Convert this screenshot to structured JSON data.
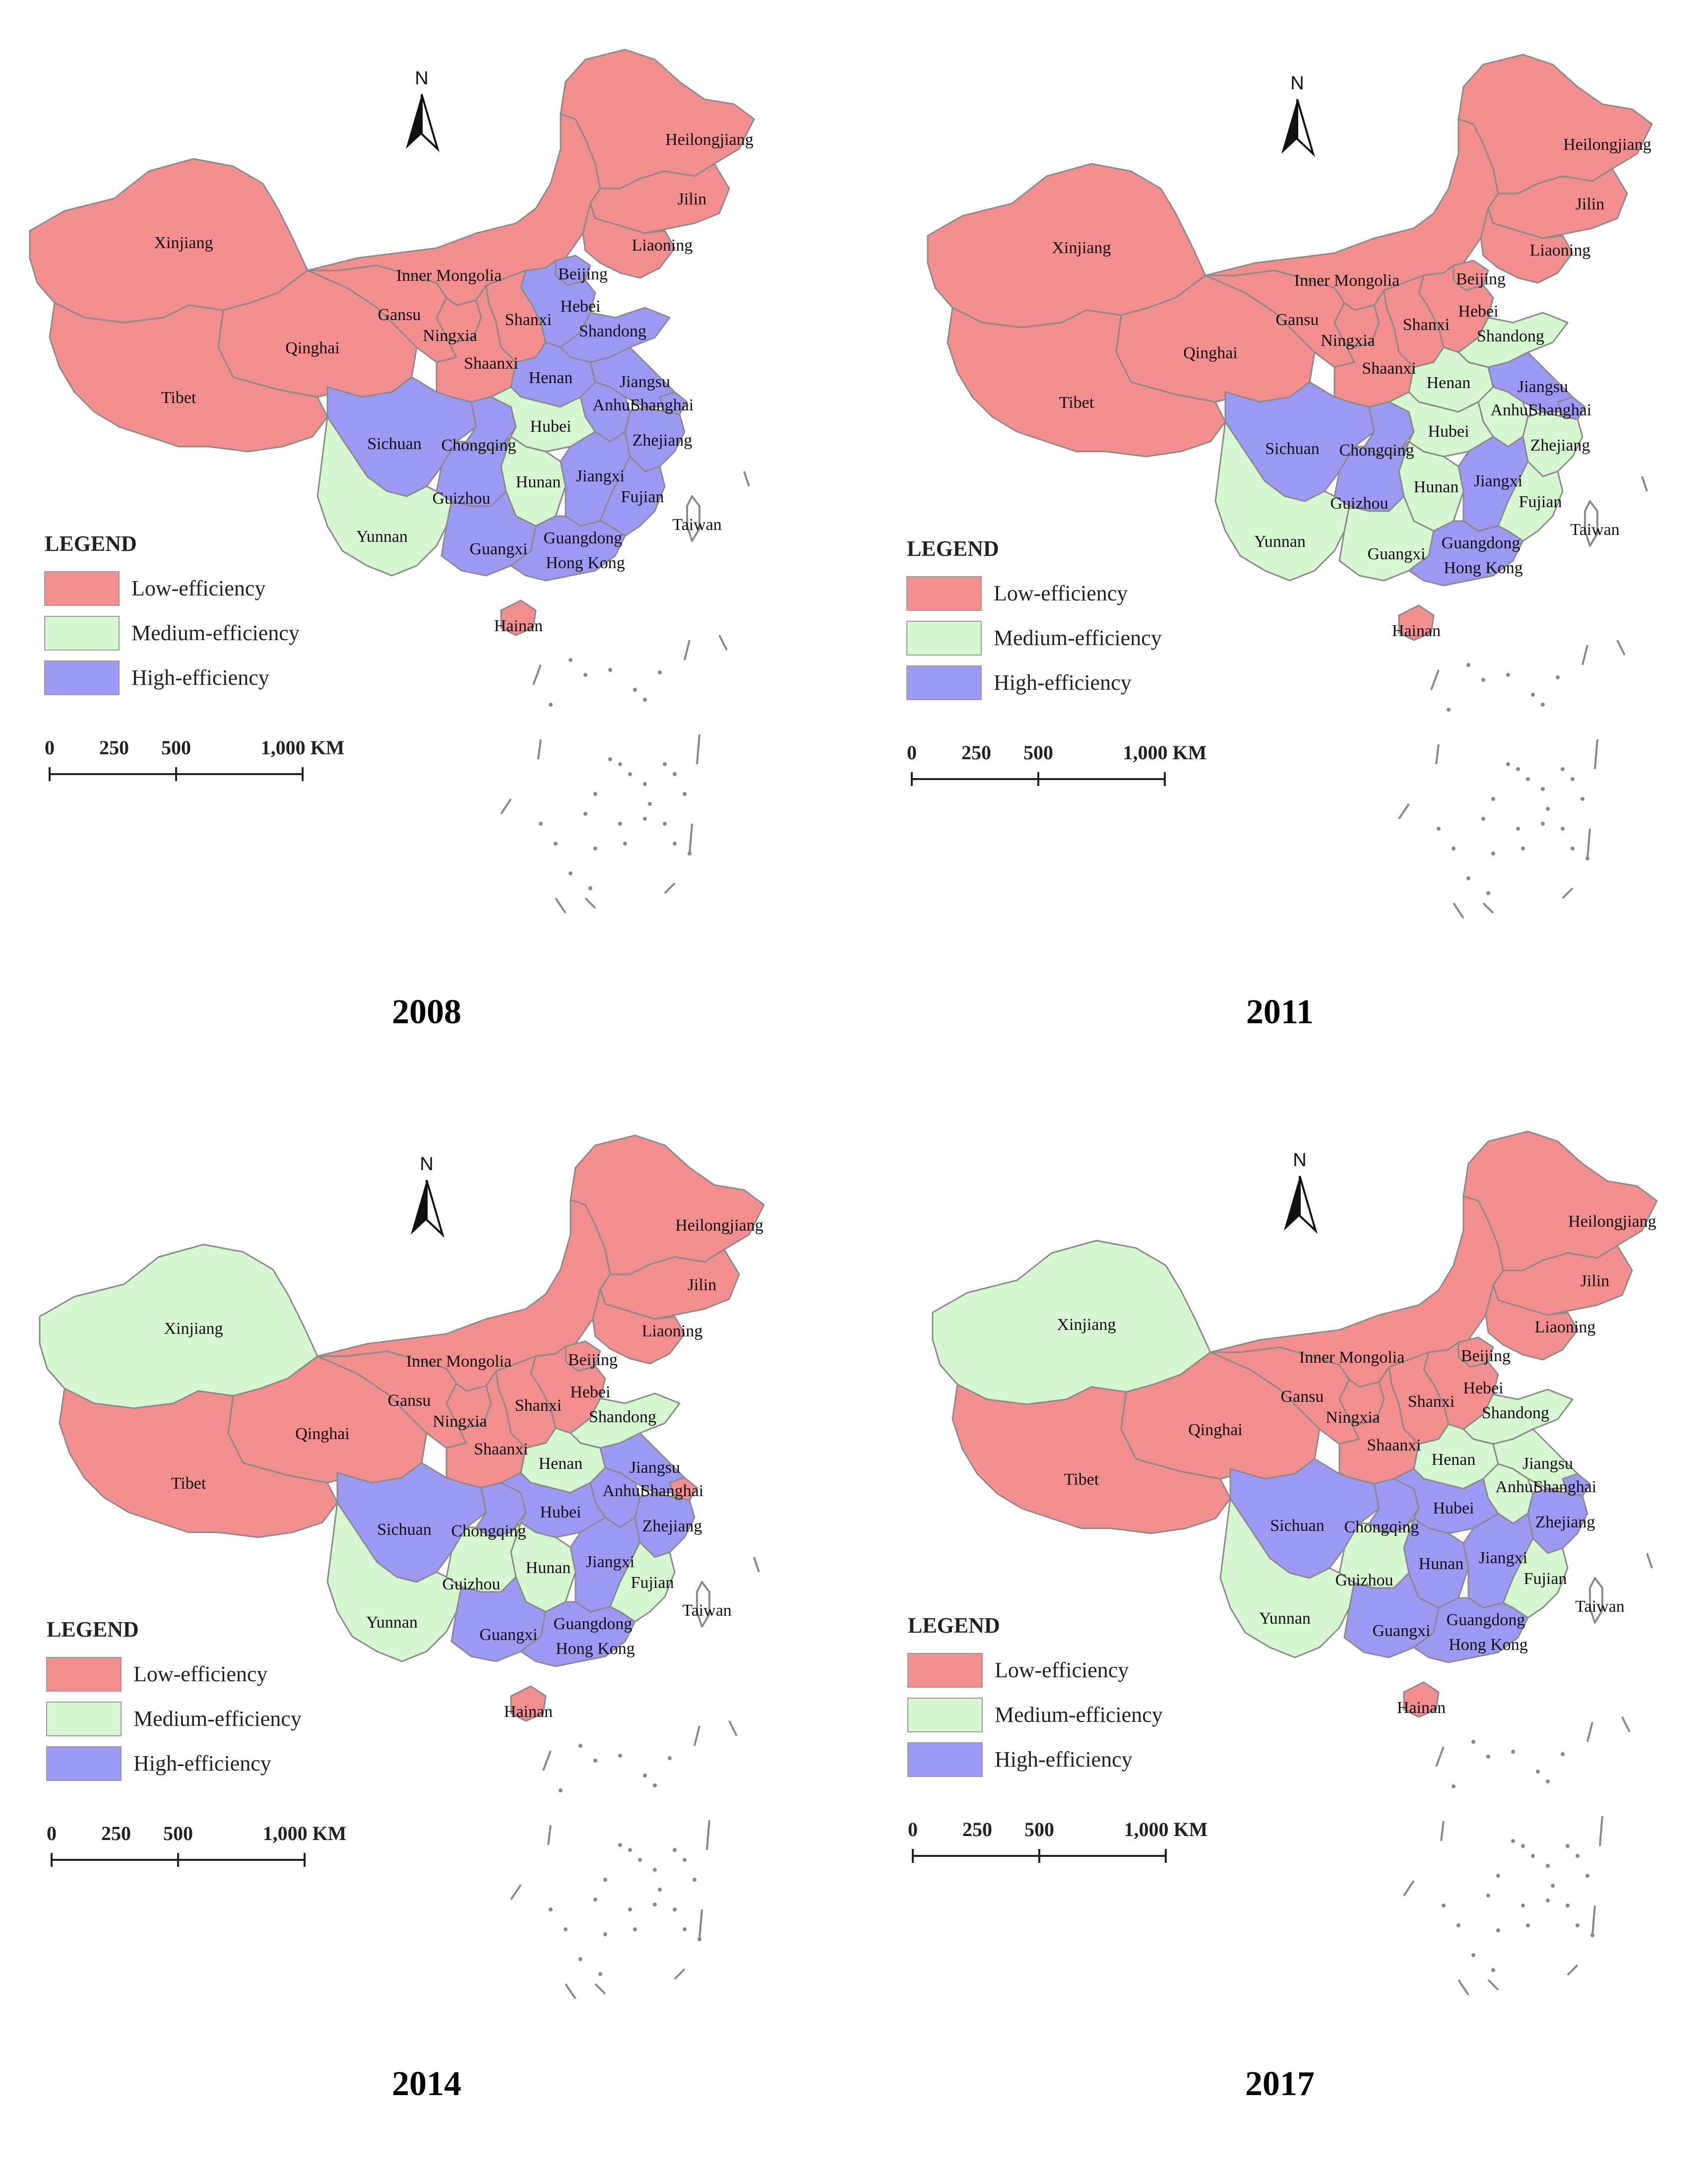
{
  "colors": {
    "low": "#f48f8f",
    "medium": "#d6f8d1",
    "high": "#9c9af4",
    "border": "#8a8a8a"
  },
  "legend": {
    "title": "LEGEND",
    "items": [
      {
        "key": "low",
        "label": "Low-efficiency"
      },
      {
        "key": "medium",
        "label": "Medium-efficiency"
      },
      {
        "key": "high",
        "label": "High-efficiency"
      }
    ]
  },
  "scale_bar": {
    "ticks": [
      "0",
      "250",
      "500",
      "1,000 KM"
    ]
  },
  "north_arrow": {
    "label": "N",
    "icon": "north-arrow-icon"
  },
  "labels": {
    "Xinjiang": "Xinjiang",
    "Tibet": "Tibet",
    "Qinghai": "Qinghai",
    "Gansu": "Gansu",
    "InnerMongolia": "Inner Mongolia",
    "Heilongjiang": "Heilongjiang",
    "Jilin": "Jilin",
    "Liaoning": "Liaoning",
    "Beijing": "Beijing",
    "Hebei": "Hebei",
    "Shandong": "Shandong",
    "Shanxi": "Shanxi",
    "Ningxia": "Ningxia",
    "Shaanxi": "Shaanxi",
    "Henan": "Henan",
    "Jiangsu": "Jiangsu",
    "Anhui": "Anhui",
    "Shanghai": "Shanghai",
    "Sichuan": "Sichuan",
    "Chongqing": "Chongqing",
    "Hubei": "Hubei",
    "Zhejiang": "Zhejiang",
    "Hunan": "Hunan",
    "Jiangxi": "Jiangxi",
    "Guizhou": "Guizhou",
    "Fujian": "Fujian",
    "Yunnan": "Yunnan",
    "Guangxi": "Guangxi",
    "Guangdong": "Guangdong",
    "HongKong": "Hong Kong",
    "Taiwan": "Taiwan",
    "Hainan": "Hainan"
  },
  "maps": [
    {
      "year": "2008",
      "classes": {
        "Xinjiang": "low",
        "Tibet": "low",
        "Qinghai": "low",
        "Gansu": "low",
        "InnerMongolia": "low",
        "Heilongjiang": "low",
        "Jilin": "low",
        "Liaoning": "low",
        "Beijing": "high",
        "Hebei": "high",
        "Shandong": "high",
        "Shanxi": "low",
        "Ningxia": "low",
        "Shaanxi": "low",
        "Henan": "high",
        "Jiangsu": "high",
        "Anhui": "high",
        "Shanghai": "high",
        "Sichuan": "high",
        "Chongqing": "high",
        "Hubei": "medium",
        "Zhejiang": "high",
        "Hunan": "medium",
        "Jiangxi": "high",
        "Guizhou": "high",
        "Fujian": "high",
        "Yunnan": "medium",
        "Guangxi": "high",
        "Guangdong": "high",
        "Hainan": "low"
      }
    },
    {
      "year": "2011",
      "classes": {
        "Xinjiang": "low",
        "Tibet": "low",
        "Qinghai": "low",
        "Gansu": "low",
        "InnerMongolia": "low",
        "Heilongjiang": "low",
        "Jilin": "low",
        "Liaoning": "low",
        "Beijing": "low",
        "Hebei": "low",
        "Shandong": "medium",
        "Shanxi": "low",
        "Ningxia": "low",
        "Shaanxi": "low",
        "Henan": "medium",
        "Jiangsu": "high",
        "Anhui": "medium",
        "Shanghai": "high",
        "Sichuan": "high",
        "Chongqing": "high",
        "Hubei": "medium",
        "Zhejiang": "medium",
        "Hunan": "medium",
        "Jiangxi": "high",
        "Guizhou": "high",
        "Fujian": "medium",
        "Yunnan": "medium",
        "Guangxi": "medium",
        "Guangdong": "high",
        "Hainan": "low"
      }
    },
    {
      "year": "2014",
      "classes": {
        "Xinjiang": "medium",
        "Tibet": "low",
        "Qinghai": "low",
        "Gansu": "low",
        "InnerMongolia": "low",
        "Heilongjiang": "low",
        "Jilin": "low",
        "Liaoning": "low",
        "Beijing": "low",
        "Hebei": "low",
        "Shandong": "medium",
        "Shanxi": "low",
        "Ningxia": "low",
        "Shaanxi": "low",
        "Henan": "medium",
        "Jiangsu": "high",
        "Anhui": "high",
        "Shanghai": "low",
        "Sichuan": "high",
        "Chongqing": "high",
        "Hubei": "high",
        "Zhejiang": "high",
        "Hunan": "medium",
        "Jiangxi": "high",
        "Guizhou": "medium",
        "Fujian": "medium",
        "Yunnan": "medium",
        "Guangxi": "high",
        "Guangdong": "high",
        "Hainan": "low"
      }
    },
    {
      "year": "2017",
      "classes": {
        "Xinjiang": "medium",
        "Tibet": "low",
        "Qinghai": "low",
        "Gansu": "low",
        "InnerMongolia": "low",
        "Heilongjiang": "low",
        "Jilin": "low",
        "Liaoning": "low",
        "Beijing": "low",
        "Hebei": "low",
        "Shandong": "medium",
        "Shanxi": "low",
        "Ningxia": "low",
        "Shaanxi": "low",
        "Henan": "medium",
        "Jiangsu": "medium",
        "Anhui": "medium",
        "Shanghai": "high",
        "Sichuan": "high",
        "Chongqing": "high",
        "Hubei": "high",
        "Zhejiang": "high",
        "Hunan": "high",
        "Jiangxi": "high",
        "Guizhou": "medium",
        "Fujian": "medium",
        "Yunnan": "medium",
        "Guangxi": "high",
        "Guangdong": "high",
        "Hainan": "low"
      }
    }
  ]
}
